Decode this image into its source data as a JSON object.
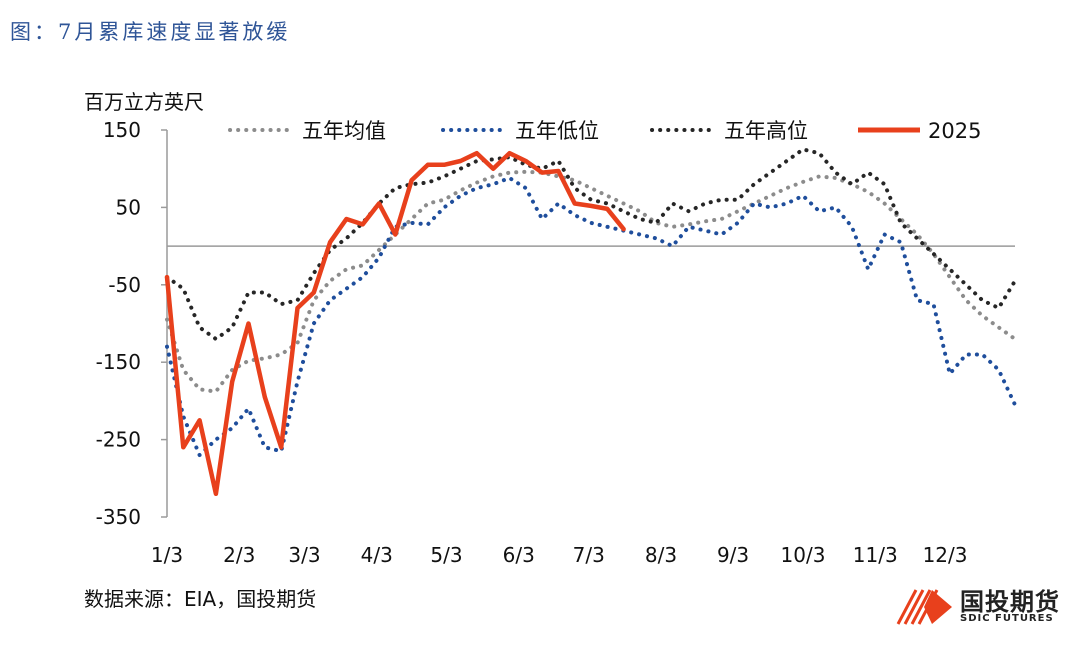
{
  "figure_title": "图：7月累库速度显著放缓",
  "unit_label": "百万立方英尺",
  "source": "数据来源：EIA，国投期货",
  "logo": {
    "cn": "国投期货",
    "en": "SDIC FUTURES",
    "icon": "sdic-logo-icon"
  },
  "colors": {
    "avg": "#8c8c8c",
    "low": "#1f4e9c",
    "high": "#262626",
    "y2025": "#e8401c",
    "title": "#2f5597"
  },
  "chart_data": {
    "type": "line",
    "title": "图：7月累库速度显著放缓",
    "ylabel": "百万立方英尺",
    "xlabel": "",
    "ylim": [
      -350,
      150
    ],
    "yticks": [
      150,
      50,
      -50,
      -150,
      -250,
      -350
    ],
    "xlim": [
      0,
      52
    ],
    "x_tick_labels": [
      "1/3",
      "2/3",
      "3/3",
      "4/3",
      "5/3",
      "6/3",
      "7/3",
      "8/3",
      "9/3",
      "10/3",
      "11/3",
      "12/3"
    ],
    "x_tick_positions": [
      0,
      4.43,
      8.43,
      12.86,
      17.14,
      21.57,
      25.86,
      30.29,
      34.71,
      39,
      43.43,
      47.71
    ],
    "legend_position": "top",
    "series": [
      {
        "name": "五年均值",
        "style": "dotted",
        "color": "#8c8c8c",
        "x": [
          0,
          1,
          2,
          3,
          4,
          5,
          6,
          7,
          8,
          9,
          10,
          11,
          12,
          13,
          14,
          15,
          16,
          17,
          18,
          19,
          20,
          21,
          22,
          23,
          24,
          25,
          26,
          27,
          28,
          29,
          30,
          31,
          32,
          33,
          34,
          35,
          36,
          37,
          38,
          39,
          40,
          41,
          42,
          43,
          44,
          45,
          46,
          47,
          48,
          49,
          50,
          51,
          52
        ],
        "y": [
          -95,
          -160,
          -185,
          -188,
          -160,
          -148,
          -145,
          -140,
          -125,
          -70,
          -45,
          -30,
          -25,
          -5,
          15,
          35,
          55,
          60,
          72,
          82,
          90,
          95,
          96,
          95,
          90,
          85,
          75,
          65,
          55,
          45,
          30,
          25,
          28,
          32,
          35,
          45,
          55,
          65,
          75,
          83,
          90,
          88,
          80,
          70,
          55,
          35,
          15,
          -10,
          -40,
          -70,
          -90,
          -105,
          -120
        ]
      },
      {
        "name": "五年低位",
        "style": "dotted",
        "color": "#1f4e9c",
        "x": [
          0,
          1,
          2,
          3,
          4,
          5,
          6,
          7,
          8,
          9,
          10,
          11,
          12,
          13,
          14,
          15,
          16,
          17,
          18,
          19,
          20,
          21,
          22,
          23,
          24,
          25,
          26,
          27,
          28,
          29,
          30,
          31,
          32,
          33,
          34,
          35,
          36,
          37,
          38,
          39,
          40,
          41,
          42,
          43,
          44,
          45,
          46,
          47,
          48,
          49,
          50,
          51,
          52
        ],
        "y": [
          -130,
          -220,
          -270,
          -250,
          -235,
          -210,
          -260,
          -265,
          -175,
          -100,
          -70,
          -55,
          -40,
          -15,
          25,
          30,
          28,
          50,
          65,
          75,
          80,
          88,
          75,
          35,
          55,
          40,
          30,
          25,
          20,
          15,
          10,
          0,
          25,
          20,
          15,
          30,
          55,
          50,
          55,
          65,
          45,
          50,
          25,
          -30,
          15,
          5,
          -70,
          -75,
          -165,
          -140,
          -140,
          -160,
          -205
        ]
      },
      {
        "name": "五年高位",
        "style": "dotted",
        "color": "#262626",
        "x": [
          0,
          1,
          2,
          3,
          4,
          5,
          6,
          7,
          8,
          9,
          10,
          11,
          12,
          13,
          14,
          15,
          16,
          17,
          18,
          19,
          20,
          21,
          22,
          23,
          24,
          25,
          26,
          27,
          28,
          29,
          30,
          31,
          32,
          33,
          34,
          35,
          36,
          37,
          38,
          39,
          40,
          41,
          42,
          43,
          44,
          45,
          46,
          47,
          48,
          49,
          50,
          51,
          52
        ],
        "y": [
          -40,
          -55,
          -105,
          -120,
          -105,
          -60,
          -60,
          -75,
          -70,
          -35,
          -5,
          10,
          30,
          55,
          75,
          80,
          82,
          90,
          100,
          110,
          112,
          115,
          105,
          100,
          110,
          75,
          60,
          55,
          45,
          35,
          30,
          55,
          45,
          55,
          60,
          60,
          80,
          95,
          110,
          125,
          120,
          95,
          80,
          95,
          80,
          30,
          10,
          -10,
          -30,
          -50,
          -70,
          -80,
          -45
        ]
      },
      {
        "name": "2025",
        "style": "solid",
        "color": "#e8401c",
        "x": [
          0,
          1,
          2,
          3,
          4,
          5,
          6,
          7,
          8,
          9,
          10,
          11,
          12,
          13,
          14,
          15,
          16,
          17,
          18,
          19,
          20,
          21,
          22,
          23,
          24,
          25,
          26,
          27,
          28
        ],
        "y": [
          -40,
          -260,
          -225,
          -320,
          -175,
          -100,
          -195,
          -260,
          -80,
          -60,
          5,
          35,
          28,
          55,
          15,
          85,
          105,
          105,
          110,
          120,
          100,
          120,
          110,
          95,
          97,
          55,
          52,
          48,
          22
        ]
      }
    ]
  }
}
